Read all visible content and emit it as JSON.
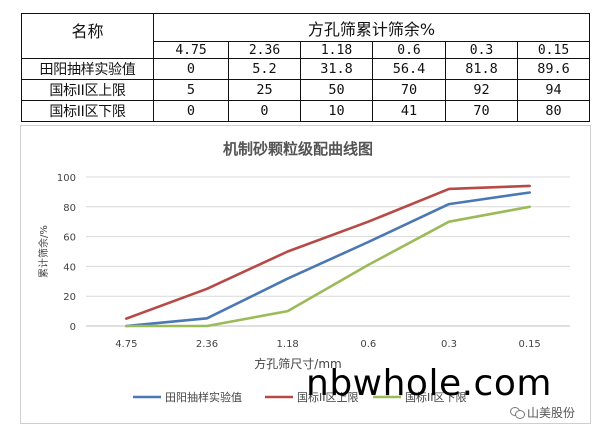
{
  "table": {
    "name_header": "名称",
    "group_header": "方孔筛累计筛余%",
    "sieves": [
      "4.75",
      "2.36",
      "1.18",
      "0.6",
      "0.3",
      "0.15"
    ],
    "rows": [
      {
        "label": "田阳抽样实验值",
        "values": [
          "0",
          "5.2",
          "31.8",
          "56.4",
          "81.8",
          "89.6"
        ]
      },
      {
        "label": "国标II区上限",
        "values": [
          "5",
          "25",
          "50",
          "70",
          "92",
          "94"
        ]
      },
      {
        "label": "国标II区下限",
        "values": [
          "0",
          "0",
          "10",
          "41",
          "70",
          "80"
        ]
      }
    ]
  },
  "chart_data": {
    "type": "line",
    "title": "机制砂颗粒级配曲线图",
    "xlabel": "方孔筛尺寸/mm",
    "ylabel": "累计筛余/%",
    "categories": [
      "4.75",
      "2.36",
      "1.18",
      "0.6",
      "0.3",
      "0.15"
    ],
    "ylim": [
      0,
      100
    ],
    "yticks": [
      "0",
      "20",
      "40",
      "60",
      "80",
      "100"
    ],
    "grid": true,
    "legend": "bottom",
    "series": [
      {
        "name": "田阳抽样实验值",
        "color": "#4a78b5",
        "values": [
          0,
          5.2,
          31.8,
          56.4,
          81.8,
          89.6
        ]
      },
      {
        "name": "国标II区上限",
        "color": "#b74a46",
        "values": [
          5,
          25,
          50,
          70,
          92,
          94
        ]
      },
      {
        "name": "国标II区下限",
        "color": "#9bbb59",
        "values": [
          0,
          0,
          10,
          41,
          70,
          80
        ]
      }
    ]
  },
  "watermark": {
    "url": "nbwhole.com",
    "brand": "山美股份",
    "icon": "wechat-icon"
  }
}
